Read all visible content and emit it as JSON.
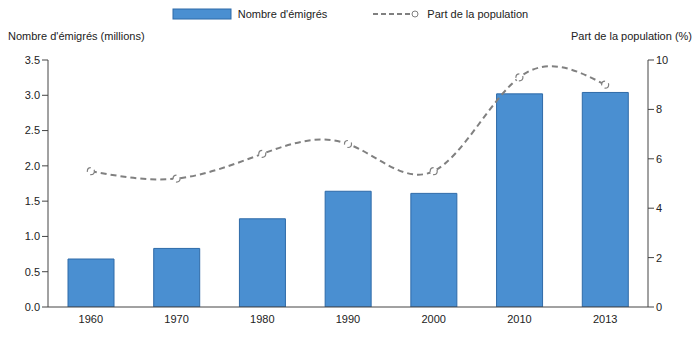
{
  "chart_data": {
    "type": "bar",
    "categories": [
      "1960",
      "1970",
      "1980",
      "1990",
      "2000",
      "2010",
      "2013"
    ],
    "ylabel": "Nombre d'émigrés (millions)",
    "y2label": "Part de la population (%)",
    "ylim": [
      0,
      3.5
    ],
    "yticks": [
      {
        "value": 0,
        "label": "0.0"
      },
      0.5,
      {
        "value": 1,
        "label": "1.0"
      },
      1.5,
      {
        "value": 2,
        "label": "2.0"
      },
      2.5,
      {
        "value": 3,
        "label": "3.0"
      },
      3.5
    ],
    "y2lim": [
      0,
      10
    ],
    "y2ticks": [
      0,
      2,
      4,
      6,
      8,
      10
    ],
    "grid": false,
    "legend": "top",
    "series": [
      {
        "name": "Nombre d'émigrés",
        "type": "bar",
        "color": "#4a8fd1",
        "values": [
          0.68,
          0.83,
          1.25,
          1.64,
          1.61,
          3.02,
          3.04
        ]
      },
      {
        "name": "Part de la population",
        "type": "line",
        "axis": "y2",
        "color": "#808080",
        "marker": "circle",
        "line_style": "dashed",
        "values": [
          5.5,
          5.2,
          6.2,
          6.6,
          5.5,
          9.3,
          9.0
        ]
      }
    ]
  }
}
